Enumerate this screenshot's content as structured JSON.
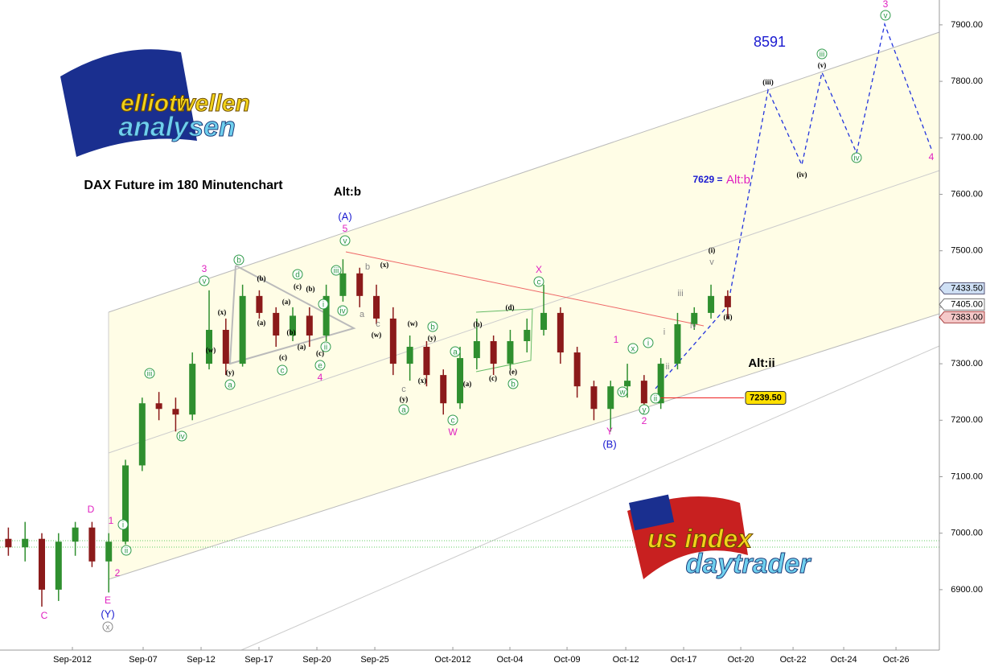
{
  "chart_data": {
    "type": "candlestick",
    "title": "DAX Future im 180 Minutenchart",
    "logos": {
      "top": [
        "elliott",
        "wellen",
        "analysen"
      ],
      "bottom": [
        "us index",
        "daytrader"
      ]
    },
    "x": [
      2,
      6,
      10,
      14,
      18,
      22,
      26,
      30,
      34,
      38,
      42,
      46,
      50,
      54,
      58,
      62,
      66,
      70,
      74,
      78,
      82,
      86,
      90,
      94,
      98,
      102,
      106,
      110,
      114,
      118,
      122,
      126,
      130,
      134,
      138,
      142,
      146,
      150,
      154,
      158,
      162,
      166,
      170,
      174
    ],
    "open": [
      6990,
      6975,
      6990,
      6900,
      6985,
      7010,
      6950,
      6985,
      7120,
      7230,
      7220,
      7210,
      7300,
      7360,
      7300,
      7420,
      7390,
      7350,
      7385,
      7350,
      7420,
      7460,
      7420,
      7380,
      7300,
      7330,
      7280,
      7230,
      7310,
      7340,
      7300,
      7340,
      7360,
      7390,
      7320,
      7260,
      7220,
      7260,
      7270,
      7230,
      7300,
      7370,
      7390,
      7420
    ],
    "high": [
      7010,
      7020,
      7000,
      7000,
      7020,
      7020,
      7000,
      7130,
      7240,
      7250,
      7240,
      7320,
      7430,
      7380,
      7440,
      7430,
      7400,
      7400,
      7400,
      7440,
      7485,
      7470,
      7440,
      7400,
      7350,
      7340,
      7290,
      7330,
      7380,
      7350,
      7360,
      7380,
      7440,
      7400,
      7330,
      7270,
      7270,
      7300,
      7280,
      7310,
      7390,
      7400,
      7440,
      7430
    ],
    "low": [
      6960,
      6950,
      6870,
      6880,
      6960,
      6940,
      6895,
      6980,
      7110,
      7200,
      7180,
      7200,
      7290,
      7280,
      7295,
      7380,
      7330,
      7340,
      7330,
      7340,
      7410,
      7400,
      7370,
      7280,
      7270,
      7260,
      7210,
      7220,
      7290,
      7280,
      7290,
      7320,
      7350,
      7300,
      7240,
      7200,
      7180,
      7240,
      7210,
      7220,
      7290,
      7360,
      7380,
      7380
    ],
    "close": [
      6975,
      6990,
      6900,
      6985,
      7010,
      6950,
      6985,
      7120,
      7230,
      7220,
      7210,
      7300,
      7360,
      7300,
      7420,
      7390,
      7350,
      7385,
      7350,
      7420,
      7460,
      7420,
      7380,
      7300,
      7330,
      7280,
      7230,
      7310,
      7340,
      7300,
      7340,
      7360,
      7390,
      7320,
      7260,
      7220,
      7260,
      7270,
      7230,
      7300,
      7370,
      7390,
      7420,
      7400
    ],
    "up_color": "#2f8f2f",
    "down_color": "#8b1a1a",
    "xlim": [
      0,
      224.6
    ],
    "xticks": [
      {
        "value": 17.31,
        "label": "Sep-2012"
      },
      {
        "value": 34.23,
        "label": "Sep-07"
      },
      {
        "value": 48.08,
        "label": "Sep-12"
      },
      {
        "value": 61.92,
        "label": "Sep-17"
      },
      {
        "value": 75.77,
        "label": "Sep-20"
      },
      {
        "value": 89.62,
        "label": "Sep-25"
      },
      {
        "value": 108.27,
        "label": "Oct-2012"
      },
      {
        "value": 121.92,
        "label": "Oct-04"
      },
      {
        "value": 135.58,
        "label": "Oct-09"
      },
      {
        "value": 149.62,
        "label": "Oct-12"
      },
      {
        "value": 163.46,
        "label": "Oct-17"
      },
      {
        "value": 177.12,
        "label": "Oct-20"
      },
      {
        "value": 189.62,
        "label": "Oct-22"
      },
      {
        "value": 201.73,
        "label": "Oct-24"
      },
      {
        "value": 214.23,
        "label": "Oct-26"
      }
    ],
    "ylim": [
      6793,
      7944
    ],
    "yticks": [
      {
        "value": 6900,
        "label": "6900.00"
      },
      {
        "value": 7000,
        "label": "7000.00"
      },
      {
        "value": 7100,
        "label": "7100.00"
      },
      {
        "value": 7200,
        "label": "7200.00"
      },
      {
        "value": 7300,
        "label": "7300.00"
      },
      {
        "value": 7400,
        "label": "7400.00"
      },
      {
        "value": 7500,
        "label": "7500.00"
      },
      {
        "value": 7600,
        "label": "7600.00"
      },
      {
        "value": 7700,
        "label": "7700.00"
      },
      {
        "value": 7800,
        "label": "7800.00"
      },
      {
        "value": 7900,
        "label": "7900.00"
      }
    ],
    "price_tags": [
      {
        "value": 7433.5,
        "label": "7433.50"
      },
      {
        "value": 7405,
        "label": "7405.00"
      },
      {
        "value": 7383,
        "label": "7383.00"
      }
    ],
    "level": {
      "value": 7239.5,
      "label": "7239.50"
    },
    "wave_labels": [
      "C",
      "D",
      "1",
      "2",
      "E",
      "(Y)",
      "x",
      "i",
      "ii",
      "iii",
      "iv",
      "3",
      "v",
      "(w)",
      "(x)",
      "(y)",
      "a",
      "b",
      "(b)",
      "(a)",
      "(c)",
      "c",
      "d",
      "(c)",
      "(a)",
      "(b)",
      "(b)",
      "(a)",
      "(c)",
      "e",
      "4",
      "ii",
      "iii",
      "iv",
      "i",
      "(A)",
      "5",
      "v",
      "Alt:b",
      "b",
      "(x)",
      "a",
      "(w)",
      "c",
      "c",
      "(y)",
      "a",
      "(x)",
      "(w)",
      "(y)",
      "b",
      "a",
      "(a)",
      "c",
      "W",
      "(b)",
      "(c)",
      "(d)",
      "(e)",
      "b",
      "X",
      "c",
      "1",
      "x",
      "w",
      "y",
      "2",
      "Y",
      "(B)",
      "i",
      "ii",
      "i",
      "ii",
      "iii",
      "iv",
      "(i)",
      "v",
      "(ii)",
      "Alt:ii",
      "(iii)",
      "(iv)",
      "(v)",
      "iii",
      "iv",
      "3",
      "v",
      "4",
      "8591",
      "7629 =",
      "Alt:b"
    ]
  }
}
